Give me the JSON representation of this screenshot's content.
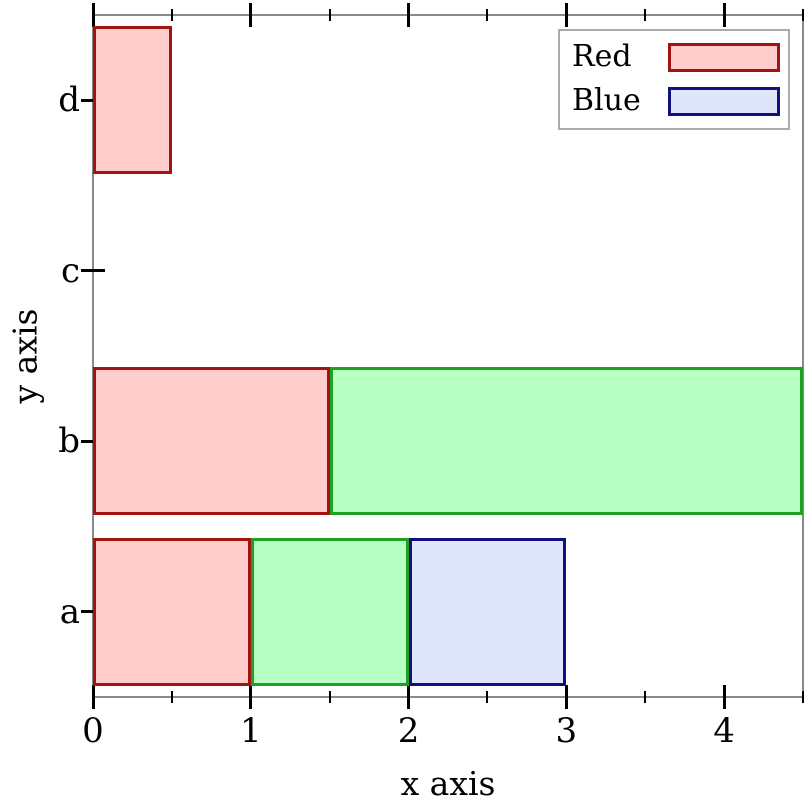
{
  "chart_data": {
    "type": "bar",
    "orientation": "horizontal-stacked",
    "title": "",
    "xlabel": "x axis",
    "ylabel": "y axis",
    "categories": [
      "a",
      "b",
      "c",
      "d"
    ],
    "category_order": "bottom-to-top",
    "series": [
      {
        "name": "Red",
        "in_legend": true,
        "fill": "#FFCCCC",
        "stroke": "#A01414",
        "values": [
          1,
          1.5,
          0,
          0.5
        ]
      },
      {
        "name": "",
        "in_legend": false,
        "fill": "#B8FFC4",
        "stroke": "#1FA01F",
        "values": [
          1,
          3,
          0,
          0
        ]
      },
      {
        "name": "Blue",
        "in_legend": true,
        "fill": "#E0E6FA",
        "stroke": "#10107E",
        "values": [
          1,
          0,
          0,
          0
        ]
      }
    ],
    "xlim": [
      0,
      4.5
    ],
    "x_major_ticks": [
      0,
      1,
      2,
      3,
      4
    ],
    "x_tick_labels": [
      "0",
      "1",
      "2",
      "3",
      "4"
    ],
    "x_minor_ticks": [
      0.5,
      1.5,
      2.5,
      3.5,
      4.5
    ],
    "grid": "off",
    "legend": {
      "position": "top-right",
      "entries": [
        {
          "label": "Red"
        },
        {
          "label": "Blue"
        }
      ]
    },
    "colors": {
      "axis_frame": "#8A8A8A",
      "tick": "#000000",
      "legend_border": "#ABABAB",
      "background": "#FFFFFF"
    }
  }
}
